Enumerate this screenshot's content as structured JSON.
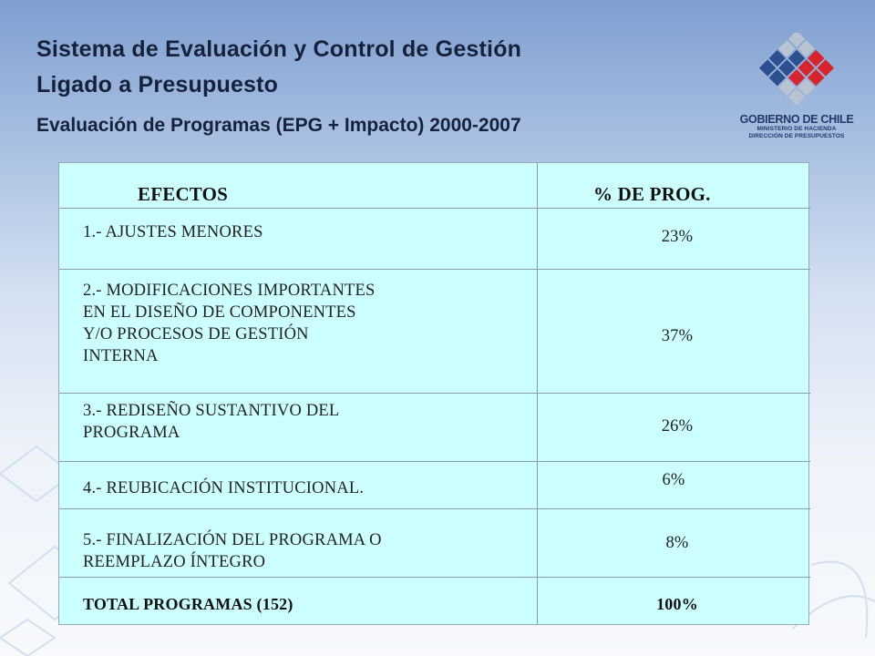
{
  "header": {
    "title_line1": "Sistema de Evaluación y Control de Gestión",
    "title_line2": "Ligado a Presupuesto",
    "subtitle": "Evaluación de Programas (EPG + Impacto) 2000-2007"
  },
  "logo": {
    "name": "GOBIERNO DE CHILE",
    "line2": "MINISTERIO DE HACIENDA",
    "line3": "DIRECCIÓN DE PRESUPUESTOS",
    "icon": "chile-government-emblem-icon",
    "colors": {
      "blue": "#2b4f8f",
      "red": "#d8252d",
      "gray": "#b8c4d2"
    }
  },
  "table": {
    "headers": [
      "EFECTOS",
      "% DE PROG."
    ],
    "rows": [
      {
        "efecto": "1.- AJUSTES MENORES",
        "pct": "23%"
      },
      {
        "efecto": [
          "2.- MODIFICACIONES IMPORTANTES",
          "EN EL DISEÑO DE COMPONENTES",
          "Y/O PROCESOS DE GESTIÓN",
          "INTERNA"
        ],
        "pct": "37%"
      },
      {
        "efecto": [
          "3.- REDISEÑO SUSTANTIVO DEL",
          "PROGRAMA"
        ],
        "pct": "26%"
      },
      {
        "efecto": "4.- REUBICACIÓN INSTITUCIONAL.",
        "pct": "6%"
      },
      {
        "efecto": [
          "5.- FINALIZACIÓN DEL PROGRAMA O",
          "REEMPLAZO ÍNTEGRO"
        ],
        "pct": "8%"
      }
    ],
    "total": {
      "label": "TOTAL PROGRAMAS  (152)",
      "pct": "100%"
    },
    "background": "#ccffff"
  }
}
